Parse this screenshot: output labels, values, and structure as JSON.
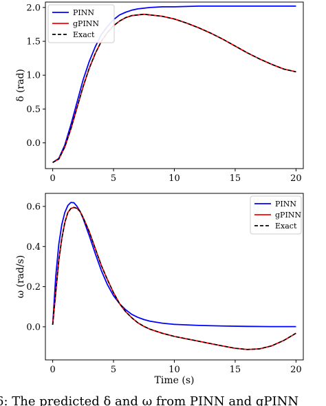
{
  "caption": "6: The predicted δ and ω from PINN and gPINN",
  "chart_data": [
    {
      "type": "line",
      "title": "",
      "xlabel": "",
      "ylabel": "δ (rad)",
      "xlim": [
        -0.6,
        20.6
      ],
      "ylim": [
        -0.38,
        2.08
      ],
      "xticks": [
        0,
        5,
        10,
        15,
        20
      ],
      "xtick_labels": [
        "0",
        "5",
        "10",
        "15",
        "20"
      ],
      "yticks": [
        0.0,
        0.5,
        1.0,
        1.5,
        2.0
      ],
      "ytick_labels": [
        "0.0",
        "0.5",
        "1.0",
        "1.5",
        "2.0"
      ],
      "legend_position": "top-left",
      "grid": false,
      "series": [
        {
          "name": "PINN",
          "color": "#0000ff",
          "style": "solid",
          "x": [
            0,
            0.5,
            1,
            1.5,
            2,
            2.5,
            3,
            3.5,
            4,
            4.5,
            5,
            5.5,
            6,
            6.5,
            7,
            7.5,
            8,
            9,
            10,
            12,
            14,
            16,
            18,
            20
          ],
          "y": [
            -0.29,
            -0.23,
            -0.03,
            0.27,
            0.6,
            0.93,
            1.2,
            1.42,
            1.6,
            1.72,
            1.82,
            1.89,
            1.93,
            1.96,
            1.98,
            1.99,
            2.0,
            2.01,
            2.01,
            2.02,
            2.02,
            2.02,
            2.02,
            2.02
          ]
        },
        {
          "name": "gPINN",
          "color": "#ff0000",
          "style": "solid",
          "x": [
            0,
            0.5,
            1,
            1.5,
            2,
            2.5,
            3,
            3.5,
            4,
            4.5,
            5,
            5.5,
            6,
            6.5,
            7,
            7.5,
            8,
            9,
            10,
            11,
            12,
            13,
            14,
            15,
            16,
            17,
            18,
            19,
            20
          ],
          "y": [
            -0.29,
            -0.24,
            -0.06,
            0.21,
            0.52,
            0.83,
            1.1,
            1.32,
            1.5,
            1.63,
            1.73,
            1.8,
            1.85,
            1.88,
            1.89,
            1.9,
            1.89,
            1.87,
            1.83,
            1.77,
            1.7,
            1.62,
            1.53,
            1.43,
            1.33,
            1.24,
            1.16,
            1.09,
            1.05
          ]
        },
        {
          "name": "Exact",
          "color": "#000000",
          "style": "dashed",
          "x": [
            0,
            0.5,
            1,
            1.5,
            2,
            2.5,
            3,
            3.5,
            4,
            4.5,
            5,
            5.5,
            6,
            6.5,
            7,
            7.5,
            8,
            9,
            10,
            11,
            12,
            13,
            14,
            15,
            16,
            17,
            18,
            19,
            20
          ],
          "y": [
            -0.29,
            -0.24,
            -0.06,
            0.21,
            0.52,
            0.83,
            1.1,
            1.32,
            1.5,
            1.63,
            1.73,
            1.8,
            1.85,
            1.88,
            1.89,
            1.9,
            1.89,
            1.87,
            1.83,
            1.77,
            1.7,
            1.62,
            1.53,
            1.43,
            1.33,
            1.24,
            1.16,
            1.09,
            1.05
          ]
        }
      ]
    },
    {
      "type": "line",
      "title": "",
      "xlabel": "Time (s)",
      "ylabel": "ω (rad/s)",
      "xlim": [
        -0.6,
        20.6
      ],
      "ylim": [
        -0.165,
        0.665
      ],
      "xticks": [
        0,
        5,
        10,
        15,
        20
      ],
      "xtick_labels": [
        "0",
        "5",
        "10",
        "15",
        "20"
      ],
      "yticks": [
        0.0,
        0.2,
        0.4,
        0.6
      ],
      "ytick_labels": [
        "0.0",
        "0.2",
        "0.4",
        "0.6"
      ],
      "legend_position": "top-right",
      "grid": false,
      "series": [
        {
          "name": "PINN",
          "color": "#0000ff",
          "style": "solid",
          "x": [
            0,
            0.25,
            0.5,
            0.75,
            1,
            1.25,
            1.5,
            1.75,
            2,
            2.25,
            2.5,
            3,
            3.5,
            4,
            4.5,
            5,
            5.5,
            6,
            6.5,
            7,
            7.5,
            8,
            9,
            10,
            12,
            14,
            16,
            18,
            20
          ],
          "y": [
            0.01,
            0.25,
            0.41,
            0.51,
            0.57,
            0.605,
            0.62,
            0.618,
            0.6,
            0.575,
            0.54,
            0.455,
            0.365,
            0.28,
            0.21,
            0.155,
            0.115,
            0.085,
            0.062,
            0.047,
            0.036,
            0.028,
            0.018,
            0.012,
            0.007,
            0.004,
            0.002,
            0.001,
            0.001
          ]
        },
        {
          "name": "gPINN",
          "color": "#ff0000",
          "style": "solid",
          "x": [
            0,
            0.25,
            0.5,
            0.75,
            1,
            1.25,
            1.5,
            1.75,
            2,
            2.25,
            2.5,
            3,
            3.5,
            4,
            4.5,
            5,
            5.5,
            6,
            6.5,
            7,
            7.5,
            8,
            9,
            10,
            11,
            12,
            13,
            14,
            15,
            16,
            17,
            18,
            19,
            20
          ],
          "y": [
            0.01,
            0.17,
            0.33,
            0.44,
            0.52,
            0.57,
            0.59,
            0.595,
            0.59,
            0.575,
            0.545,
            0.475,
            0.39,
            0.305,
            0.235,
            0.17,
            0.115,
            0.075,
            0.045,
            0.02,
            0.002,
            -0.012,
            -0.032,
            -0.048,
            -0.06,
            -0.072,
            -0.084,
            -0.096,
            -0.107,
            -0.113,
            -0.11,
            -0.095,
            -0.068,
            -0.032
          ]
        },
        {
          "name": "Exact",
          "color": "#000000",
          "style": "dashed",
          "x": [
            0,
            0.25,
            0.5,
            0.75,
            1,
            1.25,
            1.5,
            1.75,
            2,
            2.25,
            2.5,
            3,
            3.5,
            4,
            4.5,
            5,
            5.5,
            6,
            6.5,
            7,
            7.5,
            8,
            9,
            10,
            11,
            12,
            13,
            14,
            15,
            16,
            17,
            18,
            19,
            20
          ],
          "y": [
            0.01,
            0.17,
            0.33,
            0.44,
            0.52,
            0.57,
            0.59,
            0.595,
            0.59,
            0.575,
            0.545,
            0.475,
            0.39,
            0.305,
            0.235,
            0.17,
            0.115,
            0.075,
            0.045,
            0.02,
            0.002,
            -0.012,
            -0.032,
            -0.048,
            -0.06,
            -0.072,
            -0.084,
            -0.096,
            -0.107,
            -0.113,
            -0.11,
            -0.095,
            -0.068,
            -0.032
          ]
        }
      ]
    }
  ]
}
